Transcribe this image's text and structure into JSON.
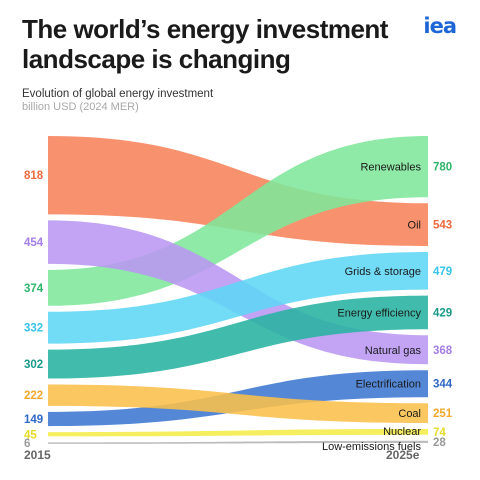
{
  "header": {
    "title": "The world’s energy investment landscape is changing",
    "logo": "iea",
    "subtitle": "Evolution of global energy investment",
    "unit": "billion USD (2024 MER)"
  },
  "chart_data": {
    "type": "sankey-bump",
    "x_labels": [
      "2015",
      "2025e"
    ],
    "series": [
      {
        "name": "Renewables",
        "color": "#7ee79a",
        "label_color": "#2fb56a",
        "v2015": 374,
        "v2025": 780
      },
      {
        "name": "Oil",
        "color": "#f7825a",
        "label_color": "#ef6a3c",
        "v2015": 818,
        "v2025": 543
      },
      {
        "name": "Grids & storage",
        "color": "#5fd6f5",
        "label_color": "#38c3ea",
        "v2015": 332,
        "v2025": 479
      },
      {
        "name": "Energy efficiency",
        "color": "#27b3a1",
        "label_color": "#1a9a88",
        "v2015": 302,
        "v2025": 429
      },
      {
        "name": "Natural gas",
        "color": "#b996f2",
        "label_color": "#a57ee8",
        "v2015": 454,
        "v2025": 368
      },
      {
        "name": "Electrification",
        "color": "#3c78d2",
        "label_color": "#2f68c4",
        "v2015": 149,
        "v2025": 344
      },
      {
        "name": "Coal",
        "color": "#fbbf4a",
        "label_color": "#f2a72a",
        "v2015": 222,
        "v2025": 251
      },
      {
        "name": "Nuclear",
        "color": "#f4ed4a",
        "label_color": "#e8dc25",
        "v2015": 45,
        "v2025": 74
      },
      {
        "name": "Low-emissions fuels",
        "color": "#b4b4b4",
        "label_color": "#9a9a9a",
        "v2015": 6,
        "v2025": 28
      }
    ]
  }
}
